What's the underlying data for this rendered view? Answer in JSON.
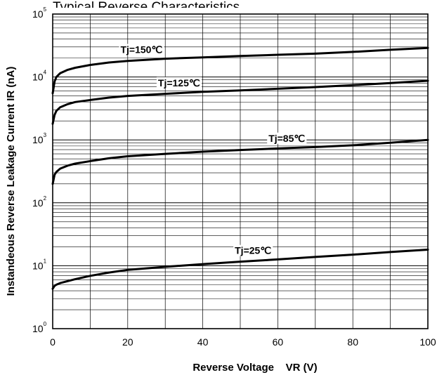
{
  "chart_data": {
    "type": "line",
    "title": "Typical Reverse Characteristics",
    "xlabel": "Reverse Voltage    VR (V)",
    "ylabel": "Instandeous Reverse Leakage Current IR (nA)",
    "xlim": [
      0,
      100
    ],
    "ylim": [
      1,
      100000
    ],
    "yscale": "log",
    "grid": true,
    "x_ticks": [
      "0",
      "20",
      "40",
      "60",
      "80",
      "100"
    ],
    "y_ticks": [
      {
        "base": "10",
        "exp": "0"
      },
      {
        "base": "10",
        "exp": "1"
      },
      {
        "base": "10",
        "exp": "2"
      },
      {
        "base": "10",
        "exp": "3"
      },
      {
        "base": "10",
        "exp": "4"
      },
      {
        "base": "10",
        "exp": "5"
      }
    ],
    "x": [
      0,
      0.5,
      1,
      2,
      4,
      6,
      10,
      15,
      20,
      30,
      40,
      50,
      60,
      70,
      80,
      90,
      100
    ],
    "series": [
      {
        "name": "Tj=150℃",
        "values": [
          5500,
          8500,
          10000,
          11500,
          13000,
          14000,
          15500,
          17000,
          18000,
          19500,
          20500,
          21500,
          22500,
          23500,
          25000,
          27000,
          29000
        ]
      },
      {
        "name": "Tj=125℃",
        "values": [
          1800,
          2500,
          2900,
          3300,
          3700,
          4000,
          4300,
          4700,
          5000,
          5400,
          5800,
          6100,
          6500,
          6900,
          7400,
          8000,
          8700
        ]
      },
      {
        "name": "Tj=85℃",
        "values": [
          200,
          280,
          310,
          350,
          390,
          420,
          460,
          510,
          550,
          600,
          650,
          690,
          730,
          770,
          820,
          900,
          1000
        ]
      },
      {
        "name": "Tj=25℃",
        "values": [
          4.3,
          4.8,
          5.0,
          5.3,
          5.7,
          6.1,
          6.9,
          7.8,
          8.6,
          9.6,
          10.6,
          11.6,
          12.6,
          13.8,
          15.0,
          16.5,
          18.0
        ]
      }
    ]
  }
}
